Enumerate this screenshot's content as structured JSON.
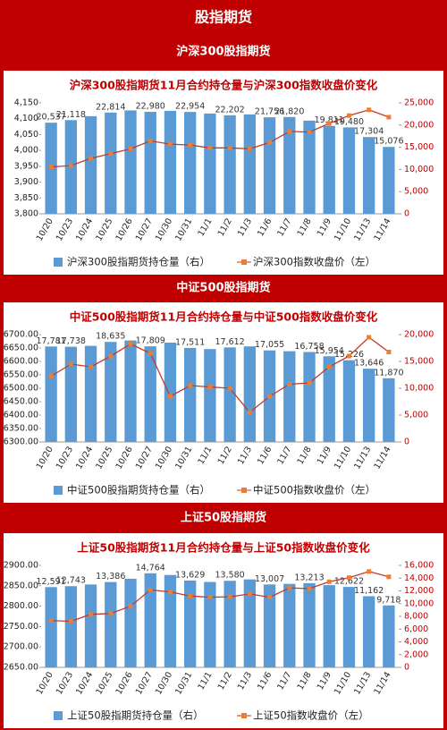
{
  "header": {
    "title": "股指期货"
  },
  "chart_data": [
    {
      "type": "combo",
      "section_title": "沪深300股指期货",
      "title": "沪深300股指期货11月合约持仓量与沪深300指数收盘价变化",
      "categories": [
        "10/20",
        "10/23",
        "10/24",
        "10/25",
        "10/26",
        "10/27",
        "10/30",
        "10/31",
        "11/1",
        "11/2",
        "11/3",
        "11/6",
        "11/7",
        "11/8",
        "11/9",
        "11/10",
        "11/13",
        "11/14"
      ],
      "series": [
        {
          "name": "沪深300股指期货持仓量（右）",
          "type": "bar",
          "axis": "y2",
          "color": "#5b9bd5",
          "values": [
            20537,
            21118,
            22000,
            22814,
            23300,
            22980,
            23200,
            22954,
            22600,
            22202,
            22400,
            21756,
            21820,
            21000,
            19811,
            19480,
            17304,
            15076
          ],
          "value_labels": [
            "20,537",
            "21,118",
            null,
            "22,814",
            null,
            "22,980",
            null,
            "22,954",
            null,
            "22,202",
            null,
            "21,756",
            "21,820",
            null,
            "19,811",
            "19,480",
            "17,304",
            "15,076"
          ]
        },
        {
          "name": "沪深300指数收盘价（左）",
          "type": "line",
          "color": "#c0392b",
          "marker_color": "#ed7d31",
          "values": [
            3948,
            3952,
            3975,
            3990,
            4005,
            4030,
            4020,
            4017,
            4008,
            4008,
            4005,
            4025,
            4060,
            4058,
            4085,
            4110,
            4128,
            4105
          ]
        }
      ],
      "ylim": [
        3800,
        4150
      ],
      "yticks": [
        {
          "value": 3800,
          "label": "3,800"
        },
        {
          "value": 3850,
          "label": "3,850"
        },
        {
          "value": 3900,
          "label": "3,900"
        },
        {
          "value": 3950,
          "label": "3,950"
        },
        {
          "value": 4000,
          "label": "4,000"
        },
        {
          "value": 4050,
          "label": "4,050"
        },
        {
          "value": 4100,
          "label": "4,100"
        },
        {
          "value": 4150,
          "label": "4,150"
        }
      ],
      "y2lim": [
        0,
        25000
      ],
      "y2ticks": [
        0,
        {
          "value": 5000,
          "label": "5,000"
        },
        {
          "value": 10000,
          "label": "10,000"
        },
        {
          "value": 15000,
          "label": "15,000"
        },
        {
          "value": 20000,
          "label": "20,000"
        },
        {
          "value": 25000,
          "label": "25,000"
        }
      ]
    },
    {
      "type": "combo",
      "section_title": "中证500股指期货",
      "title": "中证500股指期货11月合约持仓量与中证500指数收盘价变化",
      "categories": [
        "10/20",
        "10/23",
        "10/24",
        "10/25",
        "10/26",
        "10/27",
        "10/30",
        "10/31",
        "11/1",
        "11/2",
        "11/3",
        "11/6",
        "11/7",
        "11/8",
        "11/9",
        "11/10",
        "11/13",
        "11/14"
      ],
      "series": [
        {
          "name": "中证500股指期货持仓量（右）",
          "type": "bar",
          "axis": "y2",
          "color": "#5b9bd5",
          "values": [
            17781,
            17738,
            17900,
            18635,
            18900,
            17809,
            18500,
            17511,
            17300,
            17612,
            17800,
            17055,
            16900,
            16758,
            15954,
            15226,
            13646,
            11870
          ],
          "value_labels": [
            "17,781",
            "17,738",
            null,
            "18,635",
            null,
            "17,809",
            null,
            "17,511",
            null,
            "17,612",
            null,
            "17,055",
            null,
            "16,758",
            "15,954",
            "15,226",
            "13,646",
            "11,870"
          ]
        },
        {
          "name": "中证500指数收盘价（左）",
          "type": "line",
          "color": "#c0392b",
          "marker_color": "#ed7d31",
          "values": [
            6545,
            6590,
            6580,
            6620,
            6665,
            6630,
            6470,
            6510,
            6505,
            6500,
            6410,
            6470,
            6515,
            6520,
            6580,
            6620,
            6690,
            6635
          ]
        }
      ],
      "ylim": [
        6300,
        6700
      ],
      "yticks": [
        {
          "value": 6300,
          "label": "6300.00"
        },
        {
          "value": 6350,
          "label": "6350.00"
        },
        {
          "value": 6400,
          "label": "6400.00"
        },
        {
          "value": 6450,
          "label": "6450.00"
        },
        {
          "value": 6500,
          "label": "6500.00"
        },
        {
          "value": 6550,
          "label": "6550.00"
        },
        {
          "value": 6600,
          "label": "6600.00"
        },
        {
          "value": 6650,
          "label": "6650.00"
        },
        {
          "value": 6700,
          "label": "6700.00"
        }
      ],
      "y2lim": [
        0,
        20000
      ],
      "y2ticks": [
        0,
        {
          "value": 5000,
          "label": "5,000"
        },
        {
          "value": 10000,
          "label": "10,000"
        },
        {
          "value": 15000,
          "label": "15,000"
        },
        {
          "value": 20000,
          "label": "20,000"
        }
      ]
    },
    {
      "type": "combo",
      "section_title": "上证50股指期货",
      "title": "上证50股指期货11月合约持仓量与上证50指数收盘价变化",
      "categories": [
        "10/20",
        "10/23",
        "10/24",
        "10/25",
        "10/26",
        "10/27",
        "10/30",
        "10/31",
        "11/1",
        "11/2",
        "11/3",
        "11/6",
        "11/7",
        "11/8",
        "11/9",
        "11/10",
        "11/13",
        "11/14"
      ],
      "series": [
        {
          "name": "上证50股指期货持仓量（右）",
          "type": "bar",
          "axis": "y2",
          "color": "#5b9bd5",
          "values": [
            12591,
            12743,
            13000,
            13386,
            13900,
            14764,
            14500,
            13629,
            13400,
            13580,
            13800,
            13007,
            13100,
            13213,
            12900,
            12622,
            11162,
            9718
          ],
          "value_labels": [
            "12,591",
            "12,743",
            null,
            "13,386",
            null,
            "14,764",
            null,
            "13,629",
            null,
            "13,580",
            null,
            "13,007",
            null,
            "13,213",
            null,
            "12,622",
            "11,162",
            "9,718"
          ]
        },
        {
          "name": "上证50指数收盘价（左）",
          "type": "line",
          "color": "#c0392b",
          "marker_color": "#ed7d31",
          "values": [
            2765,
            2763,
            2780,
            2782,
            2800,
            2840,
            2835,
            2825,
            2822,
            2823,
            2830,
            2822,
            2845,
            2843,
            2860,
            2870,
            2885,
            2872
          ]
        }
      ],
      "ylim": [
        2650,
        2900
      ],
      "yticks": [
        {
          "value": 2650,
          "label": "2650.00"
        },
        {
          "value": 2700,
          "label": "2700.00"
        },
        {
          "value": 2750,
          "label": "2750.00"
        },
        {
          "value": 2800,
          "label": "2800.00"
        },
        {
          "value": 2850,
          "label": "2850.00"
        },
        {
          "value": 2900,
          "label": "2900.00"
        }
      ],
      "y2lim": [
        0,
        16000
      ],
      "y2ticks": [
        0,
        {
          "value": 2000,
          "label": "2,000"
        },
        {
          "value": 4000,
          "label": "4,000"
        },
        {
          "value": 6000,
          "label": "6,000"
        },
        {
          "value": 8000,
          "label": "8,000"
        },
        {
          "value": 10000,
          "label": "10,000"
        },
        {
          "value": 12000,
          "label": "12,000"
        },
        {
          "value": 14000,
          "label": "14,000"
        },
        {
          "value": 16000,
          "label": "16,000"
        }
      ]
    }
  ]
}
